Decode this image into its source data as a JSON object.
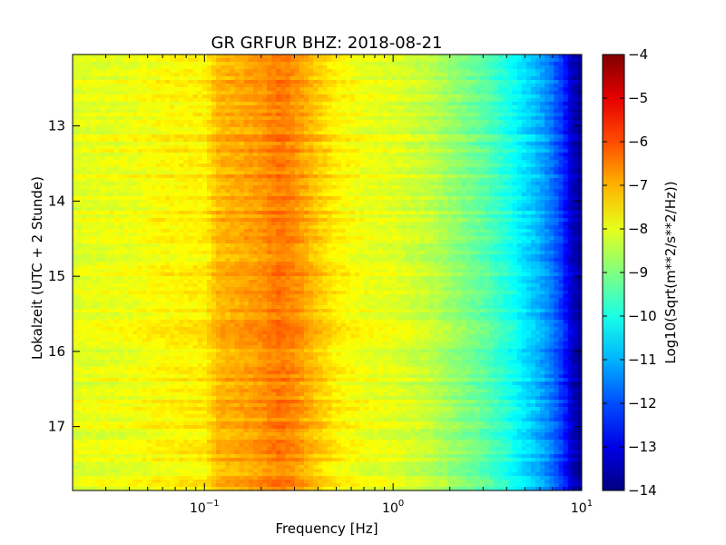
{
  "chart_data": {
    "type": "heatmap",
    "title": "GR GRFUR BHZ: 2018-08-21",
    "xlabel": "Frequency [Hz]",
    "ylabel": "Lokalzeit (UTC + 2 Stunde)",
    "xscale": "log",
    "xlim": [
      0.02,
      10
    ],
    "ylim": [
      12.05,
      17.85
    ],
    "y_inverted": true,
    "x_ticks": [
      0.1,
      1,
      10
    ],
    "x_tick_labels": [
      {
        "base": "10",
        "exp": "−1"
      },
      {
        "base": "10",
        "exp": "0"
      },
      {
        "base": "10",
        "exp": "1"
      }
    ],
    "y_ticks": [
      13,
      14,
      15,
      16,
      17
    ],
    "y_tick_labels": [
      "13",
      "14",
      "15",
      "16",
      "17"
    ],
    "colorbar": {
      "label": "Log10(Sqrt(m**2/s**2/Hz))",
      "range": [
        -14,
        -4
      ],
      "ticks": [
        -4,
        -5,
        -6,
        -7,
        -8,
        -9,
        -10,
        -11,
        -12,
        -13,
        -14
      ],
      "tick_labels": [
        "−4",
        "−5",
        "−6",
        "−7",
        "−8",
        "−9",
        "−10",
        "−11",
        "−12",
        "−13",
        "−14"
      ],
      "colormap": "jet"
    },
    "spectrum_profile": {
      "frequency_hz": [
        0.02,
        0.04,
        0.06,
        0.1,
        0.12,
        0.15,
        0.2,
        0.25,
        0.3,
        0.4,
        0.5,
        0.7,
        1.0,
        1.5,
        2.0,
        3.0,
        4.0,
        5.0,
        6.0,
        7.0,
        8.0,
        9.0,
        10.0
      ],
      "level": [
        -8.0,
        -7.9,
        -7.7,
        -7.6,
        -7.0,
        -6.9,
        -6.7,
        -6.4,
        -6.6,
        -7.2,
        -7.6,
        -7.9,
        -8.0,
        -8.3,
        -8.7,
        -9.3,
        -9.9,
        -10.5,
        -11.0,
        -11.6,
        -12.3,
        -13.4,
        -13.8
      ]
    },
    "grid": false
  }
}
